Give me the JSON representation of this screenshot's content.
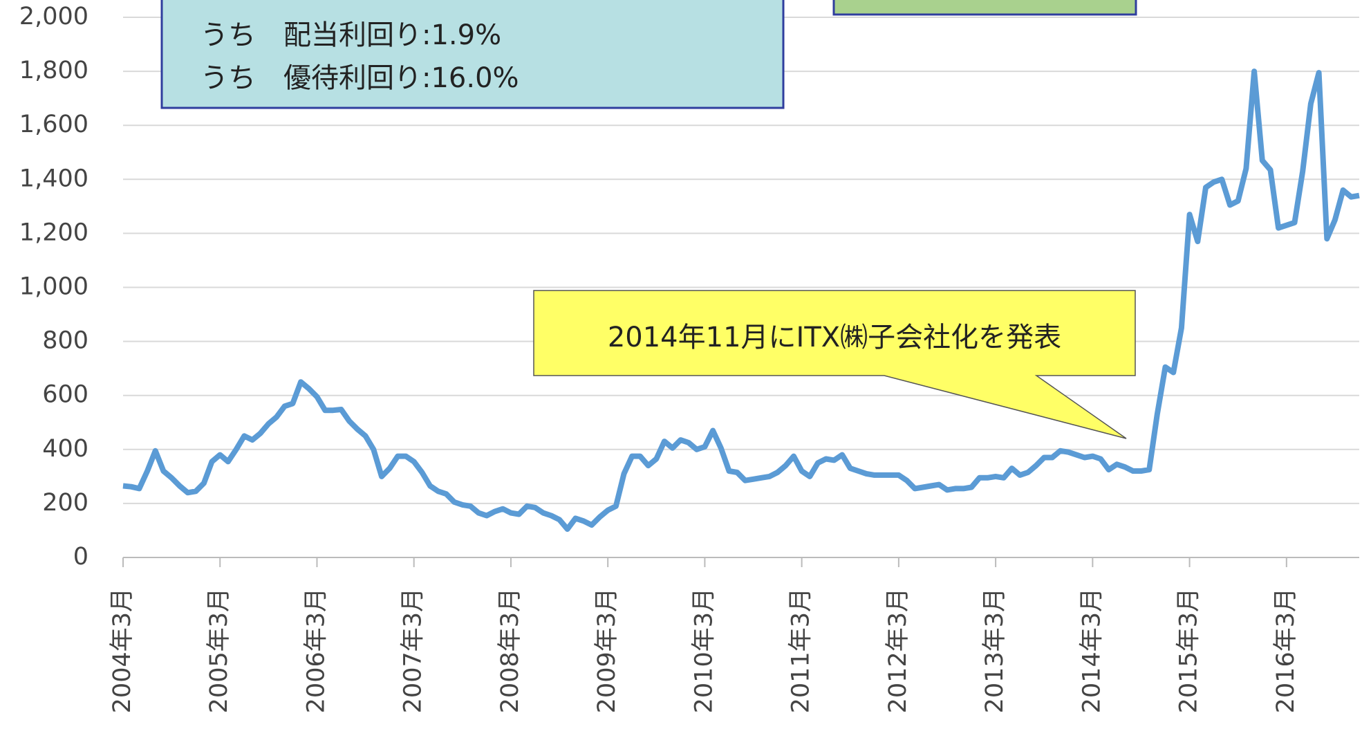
{
  "chart_data": {
    "type": "line",
    "categories": [
      "2004年3月",
      null,
      null,
      null,
      null,
      null,
      null,
      null,
      null,
      null,
      null,
      null,
      "2005年3月",
      null,
      null,
      null,
      null,
      null,
      null,
      null,
      null,
      null,
      null,
      null,
      "2006年3月",
      null,
      null,
      null,
      null,
      null,
      null,
      null,
      null,
      null,
      null,
      null,
      "2007年3月",
      null,
      null,
      null,
      null,
      null,
      null,
      null,
      null,
      null,
      null,
      null,
      "2008年3月",
      null,
      null,
      null,
      null,
      null,
      null,
      null,
      null,
      null,
      null,
      null,
      "2009年3月",
      null,
      null,
      null,
      null,
      null,
      null,
      null,
      null,
      null,
      null,
      null,
      "2010年3月",
      null,
      null,
      null,
      null,
      null,
      null,
      null,
      null,
      null,
      null,
      null,
      "2011年3月",
      null,
      null,
      null,
      null,
      null,
      null,
      null,
      null,
      null,
      null,
      null,
      "2012年3月",
      null,
      null,
      null,
      null,
      null,
      null,
      null,
      null,
      null,
      null,
      null,
      "2013年3月",
      null,
      null,
      null,
      null,
      null,
      null,
      null,
      null,
      null,
      null,
      null,
      "2014年3月",
      null,
      null,
      null,
      null,
      null,
      null,
      null,
      null,
      null,
      null,
      null,
      "2015年3月",
      null,
      null,
      null,
      null,
      null,
      null,
      null,
      null,
      null,
      null,
      null,
      "2016年3月",
      null,
      null,
      null,
      null,
      null,
      null,
      null,
      null,
      null
    ],
    "series": [
      {
        "name": null,
        "color": "#5b9bd5",
        "values": [
          265,
          262,
          255,
          320,
          395,
          320,
          295,
          265,
          240,
          245,
          275,
          355,
          380,
          355,
          400,
          450,
          435,
          460,
          495,
          520,
          560,
          570,
          650,
          625,
          595,
          545,
          545,
          548,
          505,
          475,
          450,
          400,
          300,
          330,
          375,
          375,
          355,
          315,
          265,
          245,
          235,
          205,
          195,
          190,
          165,
          155,
          170,
          180,
          165,
          160,
          190,
          185,
          165,
          155,
          140,
          105,
          145,
          135,
          120,
          150,
          175,
          190,
          310,
          375,
          375,
          340,
          365,
          430,
          405,
          435,
          425,
          400,
          410,
          470,
          405,
          320,
          315,
          285,
          290,
          295,
          300,
          315,
          340,
          375,
          320,
          300,
          350,
          365,
          360,
          380,
          330,
          320,
          310,
          305,
          305,
          305,
          305,
          285,
          255,
          260,
          265,
          270,
          250,
          255,
          255,
          260,
          295,
          295,
          300,
          295,
          330,
          305,
          315,
          340,
          370,
          370,
          395,
          390,
          380,
          370,
          375,
          365,
          325,
          345,
          335,
          320,
          320,
          325,
          530,
          705,
          685,
          850,
          1270,
          1170,
          1370,
          1390,
          1400,
          1305,
          1320,
          1440,
          1800,
          1470,
          1435,
          1220,
          1230,
          1240,
          1430,
          1680,
          1795,
          1180,
          1250,
          1360,
          1335,
          1340
        ]
      }
    ],
    "ylim": [
      0,
      2000
    ],
    "yticks": [
      0,
      200,
      400,
      600,
      800,
      {
        "value": 1000,
        "label": "1,000"
      },
      {
        "value": 1200,
        "label": "1,200"
      },
      {
        "value": 1400,
        "label": "1,400"
      },
      {
        "value": 1600,
        "label": "1,600"
      },
      {
        "value": 1800,
        "label": "1,800"
      },
      {
        "value": 2000,
        "label": "2,000"
      }
    ],
    "grid": true,
    "annotations": [
      "2014年11月にITX㈱子会社化を発表"
    ],
    "info_box": [
      "うち　配当利回り:1.9%",
      "うち　優待利回り:16.0%"
    ]
  }
}
